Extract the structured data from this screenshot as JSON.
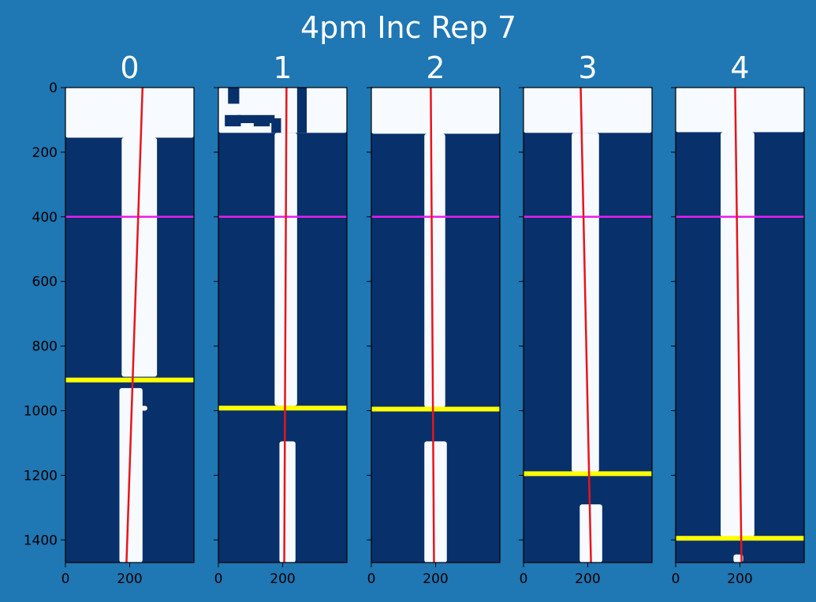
{
  "chart_data": {
    "type": "image-panels",
    "title": "4pm Inc Rep 7",
    "image_height": 1470,
    "image_width": 400,
    "ylim": [
      1470,
      0
    ],
    "xlim": [
      0,
      400
    ],
    "y_ticks": [
      0,
      200,
      400,
      600,
      800,
      1000,
      1200,
      1400
    ],
    "x_ticks": [
      0,
      200
    ],
    "colors": {
      "figure_background": "#1f77b4",
      "mask_background": "#08306b",
      "mask_foreground": "#f7fbff",
      "fit_line": "#e8141c",
      "reference_line": "#e81cf2",
      "cut_line": "#ffff00"
    },
    "reference_line_y": 400,
    "panels": [
      {
        "title": "0",
        "fit_line": {
          "y_top": 0,
          "x_top": 240,
          "y_bottom": 1470,
          "x_bottom": 190
        },
        "cut_line_y": 905,
        "regions": [
          {
            "x0": 0,
            "y0": 0,
            "x1": 400,
            "y1": 155
          },
          {
            "x0": 175,
            "y0": 155,
            "x1": 285,
            "y1": 895
          },
          {
            "x0": 168,
            "y0": 930,
            "x1": 240,
            "y1": 1470
          },
          {
            "x0": 210,
            "y0": 985,
            "x1": 255,
            "y1": 1000
          }
        ]
      },
      {
        "title": "1",
        "fit_line": {
          "y_top": 0,
          "x_top": 212,
          "y_bottom": 1470,
          "x_bottom": 205
        },
        "cut_line_y": 992,
        "regions": [
          {
            "x0": 0,
            "y0": 0,
            "x1": 400,
            "y1": 140
          },
          {
            "x0": 175,
            "y0": 140,
            "x1": 245,
            "y1": 985
          },
          {
            "x0": 190,
            "y0": 1095,
            "x1": 240,
            "y1": 1470
          }
        ],
        "holes": [
          {
            "x0": 30,
            "y0": 0,
            "x1": 65,
            "y1": 50
          },
          {
            "x0": 20,
            "y0": 85,
            "x1": 70,
            "y1": 120
          },
          {
            "x0": 60,
            "y0": 85,
            "x1": 175,
            "y1": 110
          },
          {
            "x0": 110,
            "y0": 90,
            "x1": 160,
            "y1": 120
          },
          {
            "x0": 165,
            "y0": 95,
            "x1": 195,
            "y1": 140
          },
          {
            "x0": 245,
            "y0": 0,
            "x1": 275,
            "y1": 140
          }
        ]
      },
      {
        "title": "2",
        "fit_line": {
          "y_top": 0,
          "x_top": 185,
          "y_bottom": 1470,
          "x_bottom": 195
        },
        "cut_line_y": 995,
        "regions": [
          {
            "x0": 0,
            "y0": 0,
            "x1": 400,
            "y1": 143
          },
          {
            "x0": 165,
            "y0": 143,
            "x1": 230,
            "y1": 990
          },
          {
            "x0": 165,
            "y0": 1095,
            "x1": 235,
            "y1": 1470
          }
        ]
      },
      {
        "title": "3",
        "fit_line": {
          "y_top": 0,
          "x_top": 178,
          "y_bottom": 1470,
          "x_bottom": 210
        },
        "cut_line_y": 1195,
        "regions": [
          {
            "x0": 0,
            "y0": 0,
            "x1": 400,
            "y1": 140
          },
          {
            "x0": 150,
            "y0": 140,
            "x1": 235,
            "y1": 1190
          },
          {
            "x0": 175,
            "y0": 1290,
            "x1": 245,
            "y1": 1470
          }
        ]
      },
      {
        "title": "4",
        "fit_line": {
          "y_top": 0,
          "x_top": 185,
          "y_bottom": 1470,
          "x_bottom": 205
        },
        "cut_line_y": 1395,
        "regions": [
          {
            "x0": 0,
            "y0": 0,
            "x1": 400,
            "y1": 138
          },
          {
            "x0": 140,
            "y0": 138,
            "x1": 245,
            "y1": 1390
          },
          {
            "x0": 180,
            "y0": 1445,
            "x1": 210,
            "y1": 1470
          }
        ]
      }
    ]
  }
}
